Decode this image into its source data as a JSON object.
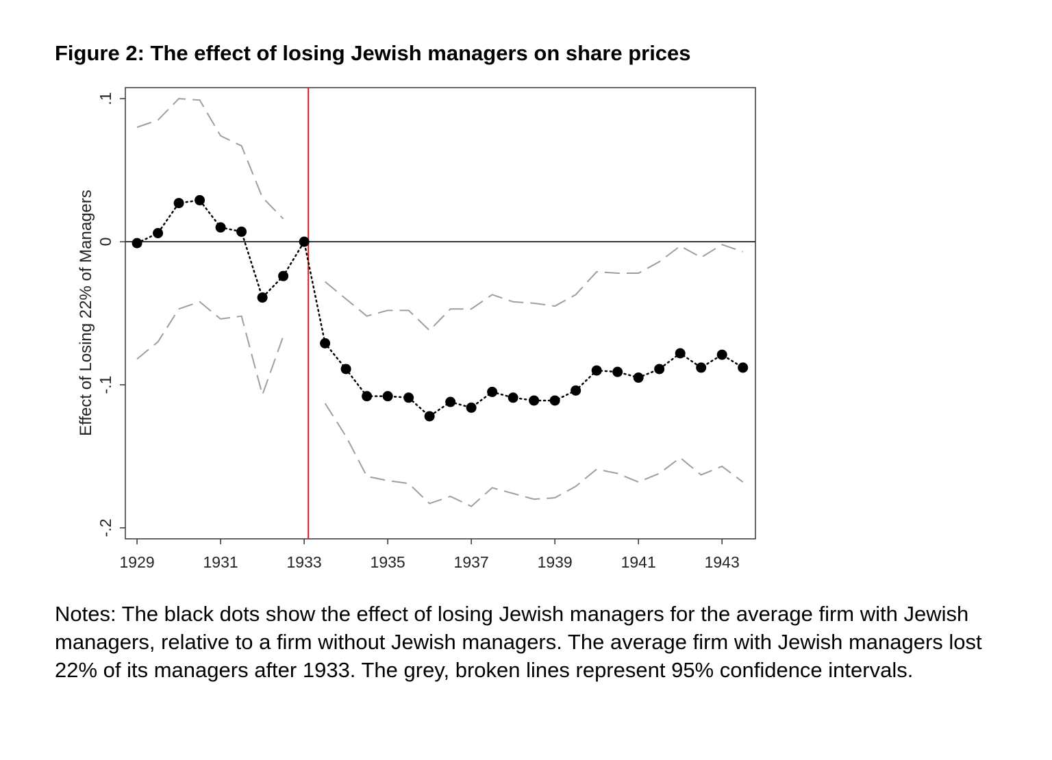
{
  "title": "Figure 2: The effect of losing Jewish managers on share prices",
  "notes": "Notes: The black dots show the effect of losing Jewish managers for the average firm with Jewish managers, relative to a firm without Jewish managers. The average firm with Jewish managers lost 22% of its managers after 1933. The grey, broken lines represent 95% confidence intervals.",
  "chart_data": {
    "type": "line",
    "title": "",
    "xlabel": "",
    "ylabel": "Effect of Losing 22% of Managers",
    "xlim": [
      1928.72,
      1943.8
    ],
    "ylim": [
      -0.2077,
      0.1077
    ],
    "x_ticks": [
      1929,
      1931,
      1933,
      1935,
      1937,
      1939,
      1941,
      1943
    ],
    "x_tick_labels": [
      "1929",
      "1931",
      "1933",
      "1935",
      "1937",
      "1939",
      "1941",
      "1943"
    ],
    "y_ticks": [
      -0.2,
      -0.1,
      0,
      0.1
    ],
    "y_tick_labels": [
      "-.2",
      "-.1",
      "0",
      ".1"
    ],
    "grid": false,
    "reference_lines": {
      "horizontal_y": 0,
      "vertical_x": 1933.1,
      "vertical_color": "#e8161b"
    },
    "colors": {
      "estimate": "#000000",
      "ci": "#9e9e9e"
    },
    "x": [
      1929,
      1929.5,
      1930,
      1930.5,
      1931,
      1931.5,
      1932,
      1932.5,
      1933,
      1933.5,
      1934,
      1934.5,
      1935,
      1935.5,
      1936,
      1936.5,
      1937,
      1937.5,
      1938,
      1938.5,
      1939,
      1939.5,
      1940,
      1940.5,
      1941,
      1941.5,
      1942,
      1942.5,
      1943,
      1943.5
    ],
    "series": [
      {
        "role": "estimate",
        "style": "dotted line with dots",
        "values": [
          -0.001,
          0.006,
          0.027,
          0.029,
          0.01,
          0.007,
          -0.039,
          -0.024,
          0.0,
          -0.071,
          -0.089,
          -0.108,
          -0.108,
          -0.109,
          -0.122,
          -0.112,
          -0.116,
          -0.105,
          -0.109,
          -0.111,
          -0.111,
          -0.104,
          -0.09,
          -0.091,
          -0.095,
          -0.089,
          -0.078,
          -0.088,
          -0.079,
          -0.088
        ]
      },
      {
        "role": "upper-95-ci",
        "style": "dashed",
        "values": [
          0.08,
          0.085,
          0.1,
          0.099,
          0.074,
          0.067,
          0.031,
          0.016,
          null,
          -0.028,
          -0.04,
          -0.052,
          -0.048,
          -0.048,
          -0.062,
          -0.047,
          -0.047,
          -0.037,
          -0.042,
          -0.043,
          -0.045,
          -0.037,
          -0.021,
          -0.022,
          -0.022,
          -0.014,
          -0.003,
          -0.011,
          -0.002,
          -0.007
        ]
      },
      {
        "role": "lower-95-ci",
        "style": "dashed",
        "values": [
          -0.082,
          -0.07,
          -0.047,
          -0.042,
          -0.054,
          -0.052,
          -0.107,
          -0.066,
          null,
          -0.113,
          -0.136,
          -0.164,
          -0.167,
          -0.169,
          -0.183,
          -0.178,
          -0.185,
          -0.172,
          -0.176,
          -0.18,
          -0.179,
          -0.171,
          -0.159,
          -0.162,
          -0.168,
          -0.162,
          -0.151,
          -0.163,
          -0.157,
          -0.168
        ]
      }
    ]
  }
}
